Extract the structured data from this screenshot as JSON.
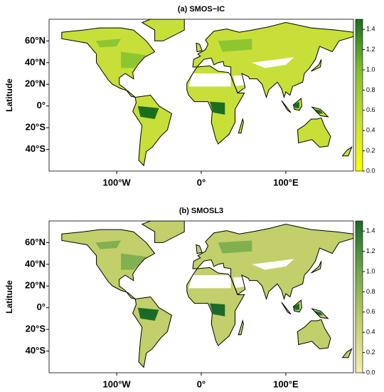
{
  "panels": [
    {
      "title": "(a) SMOS−IC",
      "ylabel": "Latitude",
      "lonlim": [
        -180,
        180
      ],
      "latlim": [
        -60,
        80
      ],
      "yticks": [
        {
          "value": 60,
          "label": "60°N"
        },
        {
          "value": 40,
          "label": "40°N"
        },
        {
          "value": 20,
          "label": "20°N"
        },
        {
          "value": 0,
          "label": "0°"
        },
        {
          "value": -20,
          "label": "20°S"
        },
        {
          "value": -40,
          "label": "40°S"
        }
      ],
      "xticks": [
        {
          "value": -100,
          "label": "100°W"
        },
        {
          "value": 0,
          "label": "0°"
        },
        {
          "value": 100,
          "label": "100°E"
        }
      ],
      "colorbar": {
        "lim": [
          0,
          1.5
        ],
        "colors": [
          "#ffff00",
          "#c8df3a",
          "#7fbf2e",
          "#1a6e1e"
        ],
        "ticks": [
          {
            "value": 0,
            "label": "0.0"
          },
          {
            "value": 0.2,
            "label": "0.2"
          },
          {
            "value": 0.4,
            "label": "0.4"
          },
          {
            "value": 0.6,
            "label": "0.6"
          },
          {
            "value": 0.8,
            "label": "0.8"
          },
          {
            "value": 1,
            "label": "1.0"
          },
          {
            "value": 1.2,
            "label": "1.2"
          },
          {
            "value": 1.4,
            "label": "1.4"
          }
        ]
      }
    },
    {
      "title": "(b) SMOSL3",
      "ylabel": "Latitude",
      "lonlim": [
        -180,
        180
      ],
      "latlim": [
        -60,
        80
      ],
      "yticks": [
        {
          "value": 60,
          "label": "60°N"
        },
        {
          "value": 40,
          "label": "40°N"
        },
        {
          "value": 20,
          "label": "20°N"
        },
        {
          "value": 0,
          "label": "0°"
        },
        {
          "value": -20,
          "label": "20°S"
        },
        {
          "value": -40,
          "label": "40°S"
        }
      ],
      "xticks": [
        {
          "value": -100,
          "label": "100°W"
        },
        {
          "value": 0,
          "label": "0°"
        },
        {
          "value": 100,
          "label": "100°E"
        }
      ],
      "colorbar": {
        "lim": [
          0,
          1.5
        ],
        "colors": [
          "#f5eeb0",
          "#c2cf6a",
          "#6fa84a",
          "#1b6a2a"
        ],
        "ticks": [
          {
            "value": 0,
            "label": "0.0"
          },
          {
            "value": 0.2,
            "label": "0.2"
          },
          {
            "value": 0.4,
            "label": "0.4"
          },
          {
            "value": 0.6,
            "label": "0.6"
          },
          {
            "value": 0.8,
            "label": "0.8"
          },
          {
            "value": 1,
            "label": "1.0"
          },
          {
            "value": 1.2,
            "label": "1.2"
          },
          {
            "value": 1.4,
            "label": "1.4"
          }
        ]
      }
    }
  ]
}
